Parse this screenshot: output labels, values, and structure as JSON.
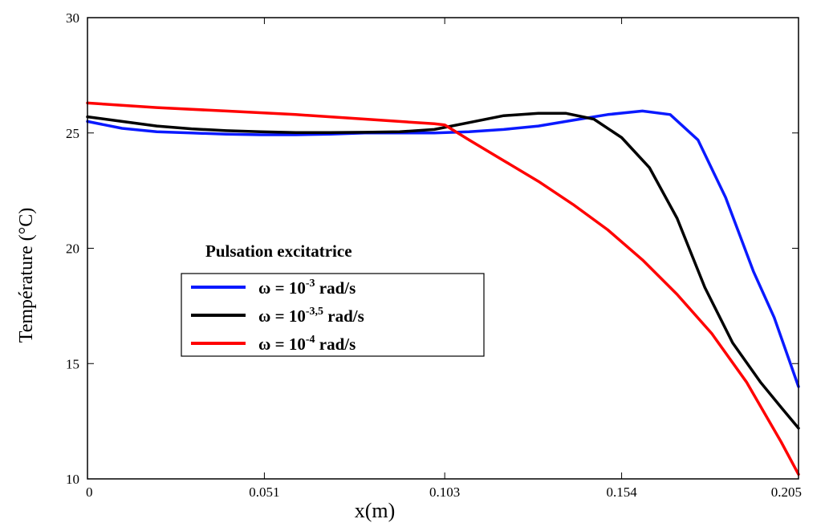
{
  "chart_data": {
    "type": "line",
    "title": "",
    "xlabel": "x(m)",
    "ylabel": "Température (°C)",
    "xlim": [
      0,
      0.205
    ],
    "ylim": [
      10,
      30
    ],
    "xticks": [
      0,
      0.051,
      0.103,
      0.154,
      0.205
    ],
    "xtick_labels": [
      "0",
      "0.051",
      "0.103",
      "0.154",
      "0.205"
    ],
    "yticks": [
      10,
      15,
      20,
      25,
      30
    ],
    "ytick_labels": [
      "10",
      "15",
      "20",
      "25",
      "30"
    ],
    "grid": false,
    "legend": {
      "title": "Pulsation excitatrice",
      "placement": "center-left",
      "entries": [
        {
          "prefix": "ω = 10",
          "sup": "-3",
          "suffix": " rad/s"
        },
        {
          "prefix": "ω = 10",
          "sup": "-3,5",
          "suffix": " rad/s"
        },
        {
          "prefix": "ω = 10",
          "sup": "-4",
          "suffix": " rad/s"
        }
      ]
    },
    "series": [
      {
        "color": "#0a1aff",
        "x": [
          0,
          0.01,
          0.02,
          0.03,
          0.04,
          0.05,
          0.06,
          0.07,
          0.08,
          0.09,
          0.1,
          0.11,
          0.12,
          0.13,
          0.14,
          0.15,
          0.16,
          0.168,
          0.176,
          0.184,
          0.192,
          0.198,
          0.205
        ],
        "y": [
          25.5,
          25.2,
          25.05,
          25.0,
          24.95,
          24.92,
          24.92,
          24.95,
          25.0,
          25.0,
          25.0,
          25.05,
          25.15,
          25.3,
          25.55,
          25.8,
          25.95,
          25.8,
          24.7,
          22.2,
          19.0,
          17.0,
          14.0
        ]
      },
      {
        "color": "#000000",
        "x": [
          0,
          0.01,
          0.02,
          0.03,
          0.04,
          0.05,
          0.06,
          0.07,
          0.08,
          0.09,
          0.1,
          0.11,
          0.12,
          0.13,
          0.138,
          0.146,
          0.154,
          0.162,
          0.17,
          0.178,
          0.186,
          0.194,
          0.2,
          0.205
        ],
        "y": [
          25.7,
          25.5,
          25.3,
          25.18,
          25.1,
          25.05,
          25.02,
          25.02,
          25.03,
          25.05,
          25.15,
          25.45,
          25.75,
          25.85,
          25.85,
          25.6,
          24.8,
          23.5,
          21.3,
          18.3,
          15.9,
          14.2,
          13.1,
          12.2
        ]
      },
      {
        "color": "#ff0000",
        "x": [
          0,
          0.02,
          0.04,
          0.06,
          0.08,
          0.1,
          0.103,
          0.11,
          0.12,
          0.13,
          0.14,
          0.15,
          0.16,
          0.17,
          0.18,
          0.19,
          0.2,
          0.205
        ],
        "y": [
          26.3,
          26.1,
          25.95,
          25.8,
          25.6,
          25.4,
          25.35,
          24.7,
          23.8,
          22.9,
          21.9,
          20.8,
          19.5,
          18.0,
          16.3,
          14.2,
          11.6,
          10.2
        ]
      }
    ]
  }
}
